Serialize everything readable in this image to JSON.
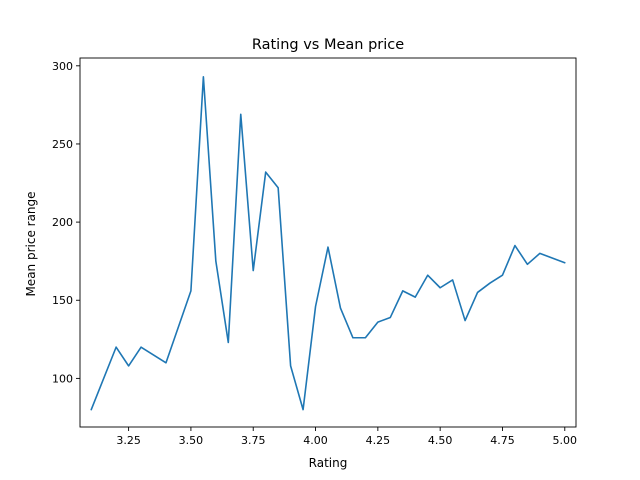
{
  "chart_data": {
    "type": "line",
    "title": "Rating vs Mean price",
    "xlabel": "Rating",
    "ylabel": "Mean price range",
    "xlim": [
      3.055,
      5.045
    ],
    "ylim": [
      68.9,
      305.0
    ],
    "xticks": [
      3.25,
      3.5,
      3.75,
      4.0,
      4.25,
      4.5,
      4.75,
      5.0
    ],
    "xtick_labels": [
      "3.25",
      "3.50",
      "3.75",
      "4.00",
      "4.25",
      "4.50",
      "4.75",
      "5.00"
    ],
    "yticks": [
      100,
      150,
      200,
      250,
      300
    ],
    "ytick_labels": [
      "100",
      "150",
      "200",
      "250",
      "300"
    ],
    "grid": false,
    "line_color": "#1f77b4",
    "series": [
      {
        "x": [
          3.1,
          3.2,
          3.25,
          3.3,
          3.4,
          3.5,
          3.55,
          3.6,
          3.65,
          3.7,
          3.75,
          3.8,
          3.85,
          3.9,
          3.95,
          4.0,
          4.05,
          4.1,
          4.15,
          4.2,
          4.25,
          4.3,
          4.35,
          4.4,
          4.45,
          4.5,
          4.55,
          4.6,
          4.65,
          4.7,
          4.75,
          4.8,
          4.85,
          4.9,
          5.0
        ],
        "values": [
          80,
          120,
          108,
          120,
          110,
          156,
          293,
          175,
          123,
          269,
          169,
          232,
          222,
          108,
          80,
          146,
          184,
          145,
          126,
          126,
          136,
          139,
          156,
          152,
          166,
          158,
          163,
          137,
          155,
          161,
          166,
          185,
          173,
          180,
          174
        ]
      }
    ]
  }
}
